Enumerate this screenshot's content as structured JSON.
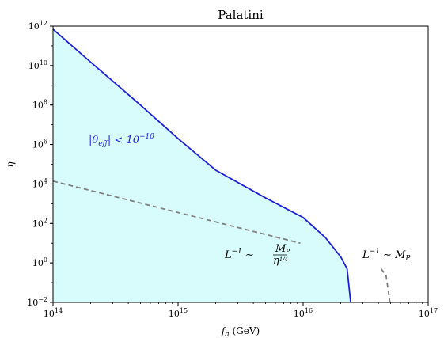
{
  "chart_data": {
    "type": "line",
    "title": "Palatini",
    "xlabel": "f_a (GeV)",
    "ylabel": "η",
    "x_scale": "log",
    "y_scale": "log",
    "xlim": [
      100000000000000.0,
      1e+17
    ],
    "ylim": [
      0.01,
      1000000000000.0
    ],
    "grid": false,
    "x_ticks": [
      {
        "value": 100000000000000.0,
        "label": "10^14"
      },
      {
        "value": 1000000000000000.0,
        "label": "10^15"
      },
      {
        "value": 1e+16,
        "label": "10^16"
      },
      {
        "value": 1e+17,
        "label": "10^17"
      }
    ],
    "y_ticks": [
      {
        "value": 0.01,
        "label": "10^-2"
      },
      {
        "value": 1.0,
        "label": "10^0"
      },
      {
        "value": 100.0,
        "label": "10^2"
      },
      {
        "value": 10000.0,
        "label": "10^4"
      },
      {
        "value": 1000000.0,
        "label": "10^6"
      },
      {
        "value": 100000000.0,
        "label": "10^8"
      },
      {
        "value": 10000000000.0,
        "label": "10^10"
      },
      {
        "value": 1000000000000.0,
        "label": "10^12"
      }
    ],
    "series": [
      {
        "style": "solid",
        "color": "#1f1fd6",
        "fill_below": "#d8fbfb",
        "points": [
          [
            100000000000000.0,
            700000000000.0
          ],
          [
            200000000000000.0,
            15000000000.0
          ],
          [
            500000000000000.0,
            100000000.0
          ],
          [
            1000000000000000.0,
            2000000.0
          ],
          [
            2000000000000000.0,
            50000.0
          ],
          [
            5000000000000000.0,
            2000.0
          ],
          [
            1e+16,
            200.0
          ],
          [
            1.5e+16,
            20
          ],
          [
            2e+16,
            2
          ],
          [
            2.25e+16,
            0.5
          ],
          [
            2.4e+16,
            0.01
          ]
        ]
      },
      {
        "style": "dashed",
        "color": "#808080",
        "points": [
          [
            100000000000000.0,
            14000.0
          ],
          [
            9500000000000000.0,
            10
          ]
        ]
      },
      {
        "style": "dashed",
        "color": "#808080",
        "points": [
          [
            4.2e+16,
            0.5
          ],
          [
            4.6e+16,
            0.25
          ],
          [
            4.95e+16,
            0.01
          ]
        ]
      }
    ],
    "annotations": [
      {
        "id": "theta",
        "text": "|θ_eff| < 10^-10",
        "color": "#1f1fd6"
      },
      {
        "id": "lmp_eta",
        "text": "L^-1 ~ M_P / η^1/4",
        "color": "#000000"
      },
      {
        "id": "lmp",
        "text": "L^-1 ~ M_P",
        "color": "#000000"
      }
    ]
  }
}
